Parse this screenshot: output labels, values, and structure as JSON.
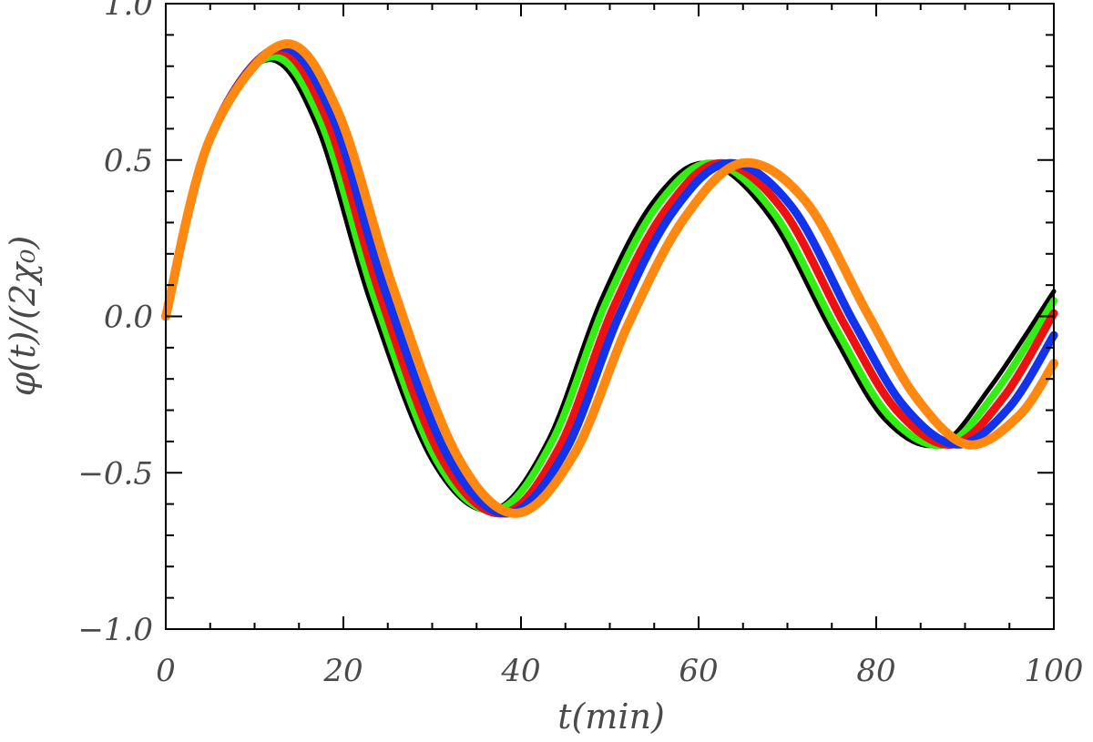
{
  "chart_data": {
    "type": "line",
    "title": "",
    "xlabel": "t(min)",
    "ylabel": "φ(t)/(2χ₀)",
    "xlim": [
      0,
      100
    ],
    "ylim": [
      -1.0,
      1.0
    ],
    "x_ticks": [
      0,
      20,
      40,
      60,
      80,
      100
    ],
    "x_tick_labels": [
      "0",
      "20",
      "40",
      "60",
      "80",
      "100"
    ],
    "y_ticks": [
      -1.0,
      -0.5,
      0.0,
      0.5,
      1.0
    ],
    "y_tick_labels": [
      "−1.0",
      "−0.5",
      "0.0",
      "0.5",
      "1.0"
    ],
    "grid": false,
    "legend": "none",
    "series": [
      {
        "color": "#000000",
        "x": [
          0,
          5,
          11.5,
          17,
          23,
          30,
          36.7,
          43,
          49,
          55,
          61,
          68,
          75,
          81,
          87.1,
          93,
          100
        ],
        "y": [
          0.0,
          0.57,
          0.82,
          0.61,
          0.05,
          -0.46,
          -0.62,
          -0.4,
          0.05,
          0.37,
          0.49,
          0.32,
          -0.05,
          -0.33,
          -0.41,
          -0.22,
          0.08
        ]
      },
      {
        "color": "#33ee11",
        "x": [
          0,
          5,
          11.8,
          17.5,
          23.5,
          30.5,
          37.2,
          43.5,
          49.5,
          55.5,
          61.6,
          68.5,
          75.5,
          81.5,
          87.7,
          93.5,
          100
        ],
        "y": [
          0.0,
          0.57,
          0.83,
          0.62,
          0.06,
          -0.46,
          -0.62,
          -0.4,
          0.04,
          0.36,
          0.49,
          0.33,
          -0.04,
          -0.32,
          -0.41,
          -0.24,
          0.05
        ]
      },
      {
        "color": "#ee1111",
        "x": [
          0,
          5,
          12.2,
          18,
          24,
          31,
          37.9,
          44.3,
          50.3,
          56.3,
          62.5,
          69.5,
          76.5,
          82.3,
          88.5,
          94.3,
          100
        ],
        "y": [
          0.0,
          0.57,
          0.85,
          0.64,
          0.08,
          -0.45,
          -0.63,
          -0.42,
          0.02,
          0.34,
          0.49,
          0.34,
          -0.03,
          -0.3,
          -0.41,
          -0.26,
          0.01
        ]
      },
      {
        "color": "#1133ee",
        "x": [
          0,
          5,
          12.6,
          18.6,
          24.6,
          31.8,
          38.5,
          45,
          51,
          57,
          63.4,
          70.5,
          77.5,
          83.2,
          89.2,
          95,
          100
        ],
        "y": [
          0.0,
          0.57,
          0.86,
          0.65,
          0.09,
          -0.45,
          -0.63,
          -0.43,
          0.0,
          0.33,
          0.49,
          0.35,
          -0.02,
          -0.29,
          -0.41,
          -0.29,
          -0.06
        ]
      },
      {
        "color": "#ff8811",
        "x": [
          0,
          5,
          13.2,
          19.3,
          25.5,
          32.7,
          39.4,
          46,
          52,
          58.3,
          64.9,
          72,
          79,
          84.5,
          90.3,
          96,
          100
        ],
        "y": [
          0.0,
          0.57,
          0.87,
          0.66,
          0.1,
          -0.44,
          -0.63,
          -0.44,
          -0.03,
          0.31,
          0.49,
          0.37,
          0.01,
          -0.26,
          -0.41,
          -0.32,
          -0.15
        ]
      }
    ]
  }
}
